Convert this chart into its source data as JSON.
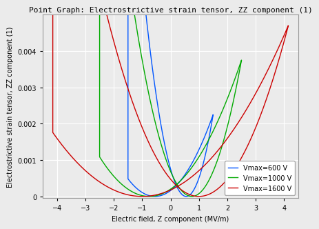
{
  "title": "Point Graph: Electrostrictive strain tensor, ZZ component (1)",
  "xlabel": "Electric field, Z component (MV/m)",
  "ylabel": "Electrostrictive strain tensor, ZZ component (1)",
  "xlim": [
    -4.5,
    4.5
  ],
  "ylim": [
    -5e-05,
    0.005
  ],
  "xticks": [
    -4,
    -3,
    -2,
    -1,
    0,
    1,
    2,
    3,
    4
  ],
  "yticks": [
    0,
    0.001,
    0.002,
    0.003,
    0.004
  ],
  "curves": [
    {
      "color": "#0055ff",
      "label": "Vmax=600 V",
      "E_max": 1.5,
      "Ec1": -0.55,
      "Ec2": 0.55,
      "peak": 0.00225
    },
    {
      "color": "#00aa00",
      "label": "Vmax=1000 V",
      "E_max": 2.5,
      "Ec1": -0.75,
      "Ec2": 0.75,
      "peak": 0.00375
    },
    {
      "color": "#cc0000",
      "label": "Vmax=1600 V",
      "E_max": 4.15,
      "Ec1": -1.0,
      "Ec2": 1.0,
      "peak": 0.0047
    }
  ],
  "bg_color": "#ebebeb",
  "grid_color": "#ffffff",
  "title_fontsize": 8.0,
  "label_fontsize": 7.0,
  "tick_fontsize": 7,
  "legend_fontsize": 7
}
